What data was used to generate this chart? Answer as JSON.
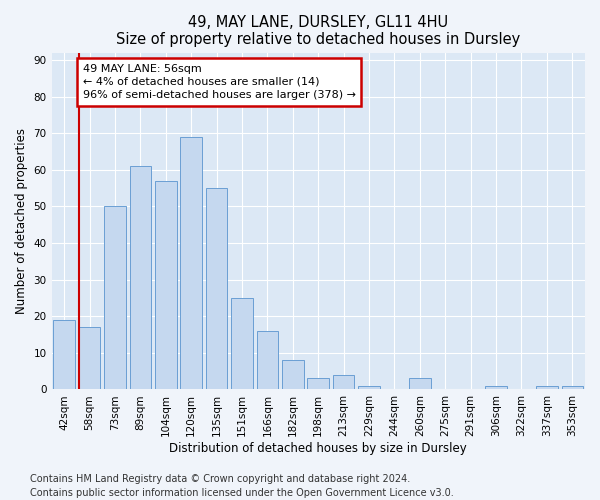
{
  "title": "49, MAY LANE, DURSLEY, GL11 4HU",
  "subtitle": "Size of property relative to detached houses in Dursley",
  "xlabel": "Distribution of detached houses by size in Dursley",
  "ylabel": "Number of detached properties",
  "categories": [
    "42sqm",
    "58sqm",
    "73sqm",
    "89sqm",
    "104sqm",
    "120sqm",
    "135sqm",
    "151sqm",
    "166sqm",
    "182sqm",
    "198sqm",
    "213sqm",
    "229sqm",
    "244sqm",
    "260sqm",
    "275sqm",
    "291sqm",
    "306sqm",
    "322sqm",
    "337sqm",
    "353sqm"
  ],
  "values": [
    19,
    17,
    50,
    61,
    57,
    69,
    55,
    25,
    16,
    8,
    3,
    4,
    1,
    0,
    3,
    0,
    0,
    1,
    0,
    1,
    1
  ],
  "bar_color": "#c5d8ef",
  "bar_edge_color": "#6a9fd4",
  "vline_color": "#cc0000",
  "vline_x_index": 1,
  "annotation_text": "49 MAY LANE: 56sqm\n← 4% of detached houses are smaller (14)\n96% of semi-detached houses are larger (378) →",
  "annotation_box_color": "#ffffff",
  "annotation_box_edge": "#cc0000",
  "ylim": [
    0,
    92
  ],
  "yticks": [
    0,
    10,
    20,
    30,
    40,
    50,
    60,
    70,
    80,
    90
  ],
  "footer1": "Contains HM Land Registry data © Crown copyright and database right 2024.",
  "footer2": "Contains public sector information licensed under the Open Government Licence v3.0.",
  "background_color": "#f0f4fa",
  "plot_bg_color": "#dce8f5",
  "grid_color": "#ffffff",
  "title_fontsize": 10.5,
  "label_fontsize": 8.5,
  "tick_fontsize": 7.5,
  "footer_fontsize": 7.0,
  "annotation_fontsize": 8.0
}
